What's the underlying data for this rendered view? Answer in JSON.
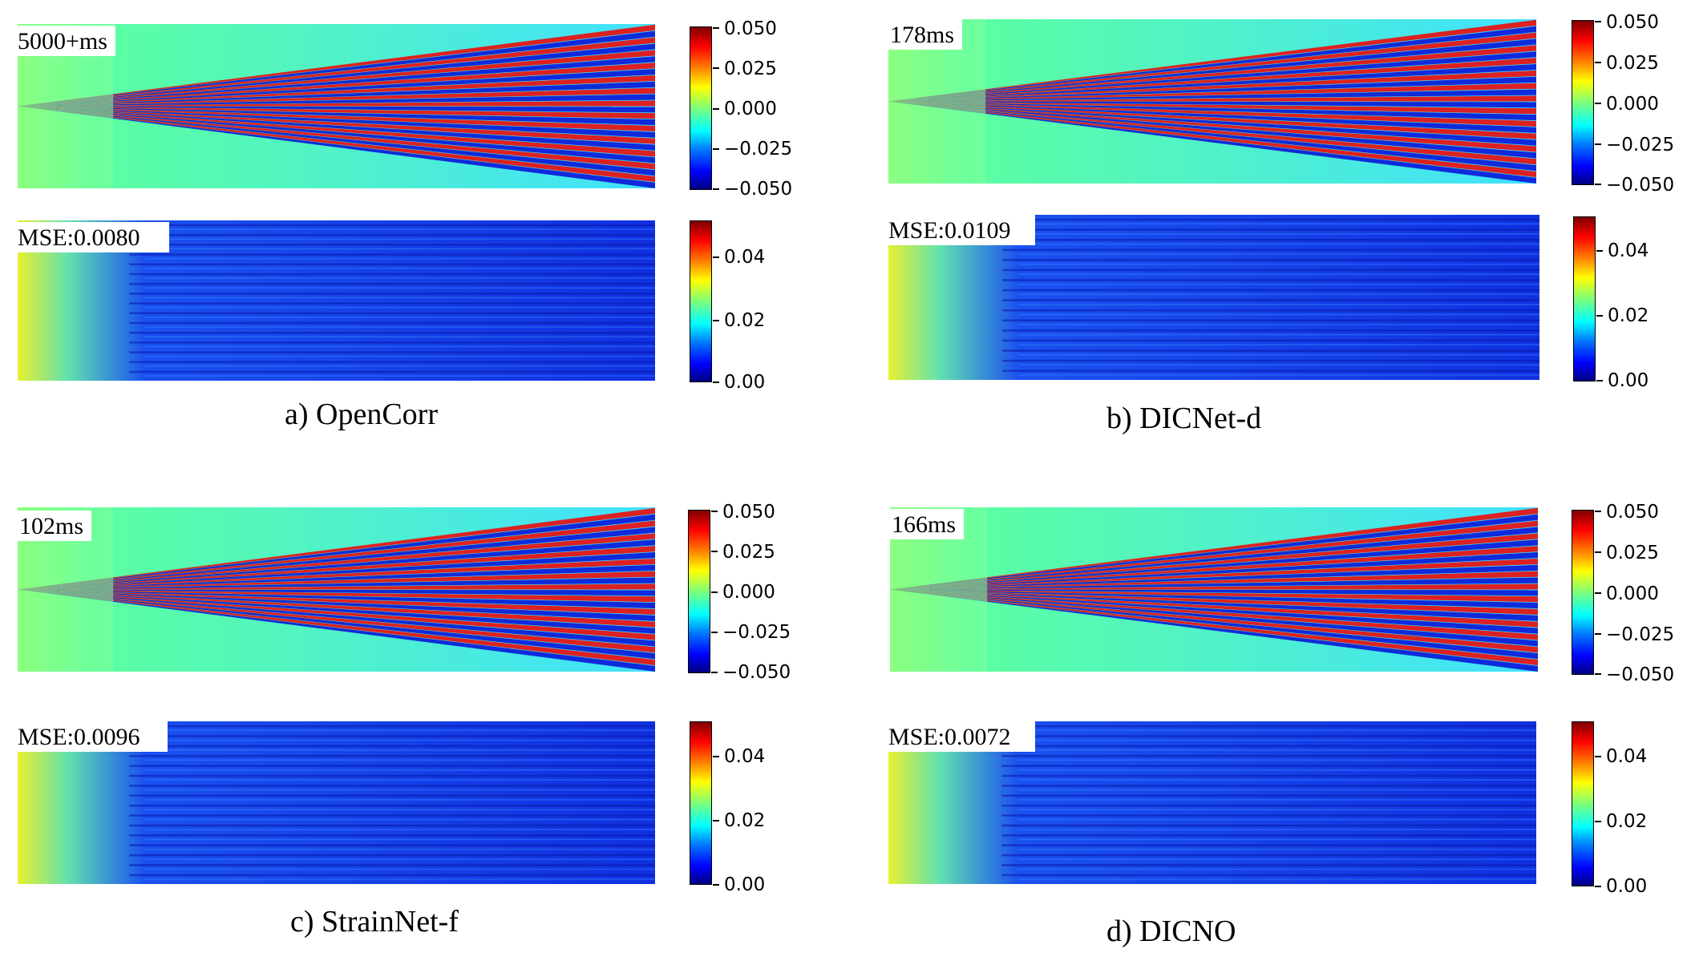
{
  "panels": [
    {
      "id": "a",
      "caption": "a) OpenCorr",
      "strain_label": "5000+ms",
      "error_label": "MSE:0.0080",
      "strain_colorbar_ticks": [
        "0.050",
        "0.025",
        "0.000",
        "−0.025",
        "−0.050"
      ],
      "error_colorbar_ticks": [
        "0.04",
        "0.02",
        "0.00"
      ]
    },
    {
      "id": "b",
      "caption": "b) DICNet-d",
      "strain_label": "178ms",
      "error_label": "MSE:0.0109",
      "strain_colorbar_ticks": [
        "0.050",
        "0.025",
        "0.000",
        "−0.025",
        "−0.050"
      ],
      "error_colorbar_ticks": [
        "0.04",
        "0.02",
        "0.00"
      ]
    },
    {
      "id": "c",
      "caption": "c) StrainNet-f",
      "strain_label": "102ms",
      "error_label": "MSE:0.0096",
      "strain_colorbar_ticks": [
        "0.050",
        "0.025",
        "0.000",
        "−0.025",
        "−0.050"
      ],
      "error_colorbar_ticks": [
        "0.04",
        "0.02",
        "0.00"
      ]
    },
    {
      "id": "d",
      "caption": "d) DICNO",
      "strain_label": "166ms",
      "error_label": "MSE:0.0072",
      "strain_colorbar_ticks": [
        "0.050",
        "0.025",
        "0.000",
        "−0.025",
        "−0.050"
      ],
      "error_colorbar_ticks": [
        "0.04",
        "0.02",
        "0.00"
      ]
    }
  ],
  "colormap": {
    "name": "jet",
    "low": "#00007f",
    "mid": "#7dff7a",
    "high": "#7f0000"
  }
}
